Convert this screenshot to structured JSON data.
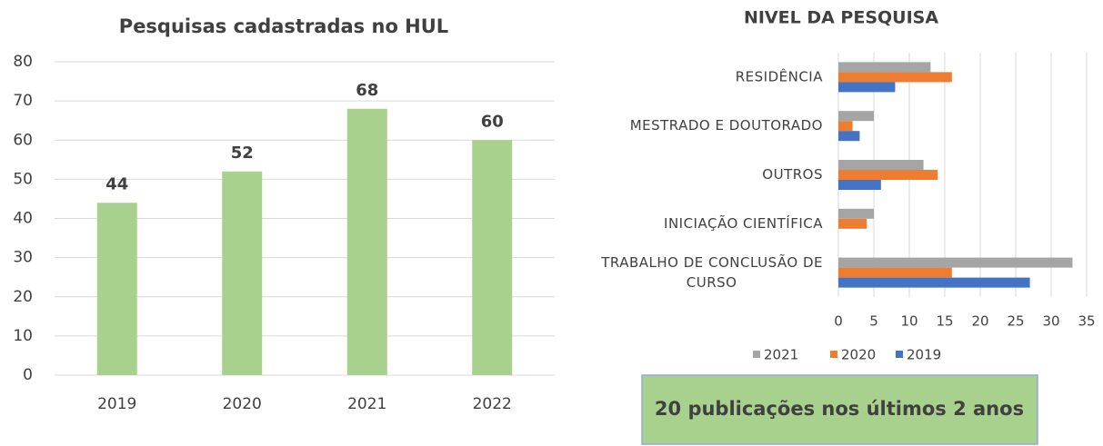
{
  "chart_data": [
    {
      "type": "bar",
      "title": "Pesquisas cadastradas no HUL",
      "categories": [
        "2019",
        "2020",
        "2021",
        "2022"
      ],
      "values": [
        44,
        52,
        68,
        60
      ],
      "color": "#a9d18e",
      "ylim": [
        0,
        80
      ],
      "yticks": [
        0,
        10,
        20,
        30,
        40,
        50,
        60,
        70,
        80
      ],
      "grid": true
    },
    {
      "type": "barh",
      "title": "NIVEL DA PESQUISA",
      "categories": [
        "RESIDÊNCIA",
        "MESTRADO E DOUTORADO",
        "OUTROS",
        "INICIAÇÃO CIENTÍFICA",
        "TRABALHO DE CONCLUSÃO DE CURSO"
      ],
      "series": [
        {
          "name": "2021",
          "color": "#a5a5a5",
          "values": [
            13,
            5,
            12,
            5,
            33
          ]
        },
        {
          "name": "2020",
          "color": "#ed7d31",
          "values": [
            16,
            2,
            14,
            4,
            16
          ]
        },
        {
          "name": "2019",
          "color": "#4472c4",
          "values": [
            8,
            3,
            6,
            0,
            27
          ]
        }
      ],
      "xlim": [
        0,
        35
      ],
      "xticks": [
        0,
        5,
        10,
        15,
        20,
        25,
        30,
        35
      ],
      "grid": true,
      "legend": "bottom"
    }
  ],
  "callout": "20 publicações nos últimos 2 anos"
}
